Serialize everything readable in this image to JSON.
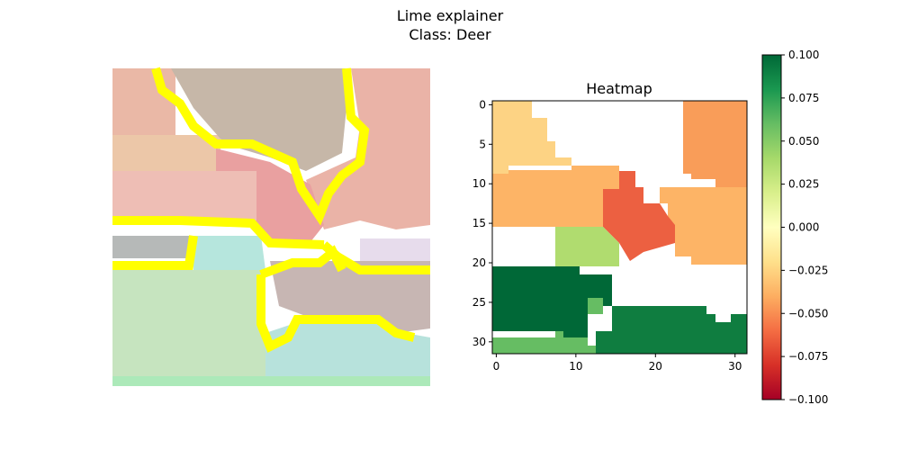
{
  "figure": {
    "title_line1": "Lime explainer",
    "title_line2": "Class: Deer"
  },
  "chart_data": [
    {
      "type": "image",
      "panel": "lime-overlay",
      "title": "",
      "description_colors": {
        "boundary": "#ffff00"
      }
    },
    {
      "type": "heatmap",
      "title": "Heatmap",
      "colormap": "RdYlGn",
      "xlim": [
        -0.5,
        31.5
      ],
      "ylim": [
        31.5,
        -0.5
      ],
      "xticks": [
        0,
        10,
        20,
        30
      ],
      "yticks": [
        0,
        5,
        10,
        15,
        20,
        25,
        30
      ],
      "colorbar": {
        "range": [
          -0.1,
          0.1
        ],
        "ticks": [
          "0.100",
          "0.075",
          "0.050",
          "0.025",
          "0.000",
          "−0.025",
          "−0.050",
          "−0.075",
          "−0.100"
        ],
        "tick_values": [
          0.1,
          0.075,
          0.05,
          0.025,
          0.0,
          -0.025,
          -0.05,
          -0.075,
          -0.1
        ]
      },
      "segments": [
        {
          "label": "top-left",
          "value": -0.028,
          "color": "#fdd384"
        },
        {
          "label": "upper-middle",
          "value": -0.045,
          "color": "#fdb466"
        },
        {
          "label": "top-right",
          "value": -0.055,
          "color": "#f99d59"
        },
        {
          "label": "center",
          "value": -0.07,
          "color": "#ec6041"
        },
        {
          "label": "middle-green",
          "value": 0.04,
          "color": "#b0dc6f"
        },
        {
          "label": "bottom-left",
          "value": 0.1,
          "color": "#006837"
        },
        {
          "label": "bottom-right",
          "value": 0.095,
          "color": "#0f7d40"
        },
        {
          "label": "bottom-strip",
          "value": 0.06,
          "color": "#66bd63"
        },
        {
          "label": "neutral",
          "value": 0.0,
          "color": "#ffffff"
        }
      ]
    }
  ]
}
